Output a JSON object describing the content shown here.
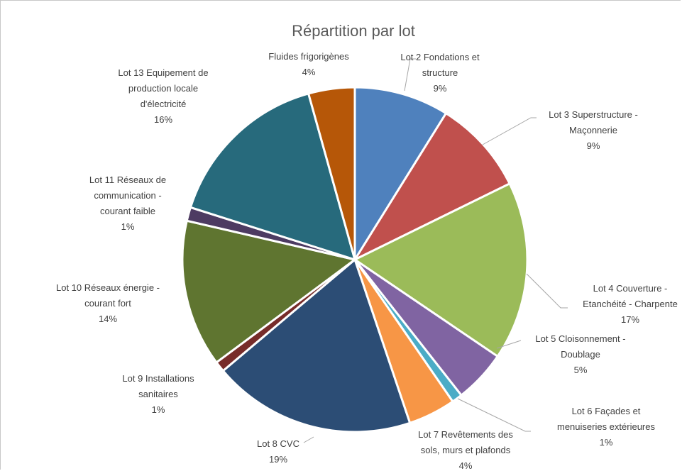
{
  "chart_data": {
    "type": "pie",
    "title": "Répartition par lot",
    "start_angle_deg": 0,
    "slices": [
      {
        "lines": [
          "Lot 2 Fondations et",
          "structure"
        ],
        "pct_label": "9%",
        "value": 9,
        "color": "#4F81BD"
      },
      {
        "lines": [
          "Lot 3 Superstructure -",
          "Maçonnerie"
        ],
        "pct_label": "9%",
        "value": 9,
        "color": "#C0504D"
      },
      {
        "lines": [
          "Lot 4 Couverture -",
          "Etanchéité - Charpente"
        ],
        "pct_label": "17%",
        "value": 17,
        "color": "#9BBB59"
      },
      {
        "lines": [
          "Lot 5 Cloisonnement -",
          "Doublage"
        ],
        "pct_label": "5%",
        "value": 5,
        "color": "#8064A2"
      },
      {
        "lines": [
          "Lot 6 Façades et",
          "menuiseries extérieures"
        ],
        "pct_label": "1%",
        "value": 1,
        "color": "#4BACC6"
      },
      {
        "lines": [
          "Lot 7 Revêtements des",
          "sols, murs et plafonds"
        ],
        "pct_label": "4%",
        "value": 4.5,
        "color": "#F79646"
      },
      {
        "lines": [
          "Lot 8 CVC"
        ],
        "pct_label": "19%",
        "value": 19.3,
        "color": "#2C4D75"
      },
      {
        "lines": [
          "Lot 9 Installations",
          "sanitaires"
        ],
        "pct_label": "1%",
        "value": 1,
        "color": "#772C2A"
      },
      {
        "lines": [
          "Lot 10 Réseaux énergie -",
          "courant fort"
        ],
        "pct_label": "14%",
        "value": 14,
        "color": "#5F7530"
      },
      {
        "lines": [
          "Lot 11 Réseaux de",
          "communication -",
          "courant faible"
        ],
        "pct_label": "1%",
        "value": 1.3,
        "color": "#4D3B62"
      },
      {
        "lines": [
          "Lot 13 Equipement de",
          "production locale",
          "d'électricité"
        ],
        "pct_label": "16%",
        "value": 16,
        "color": "#276A7C"
      },
      {
        "lines": [
          "Fluides frigorigènes"
        ],
        "pct_label": "4%",
        "value": 4.4,
        "color": "#B65708"
      }
    ]
  }
}
